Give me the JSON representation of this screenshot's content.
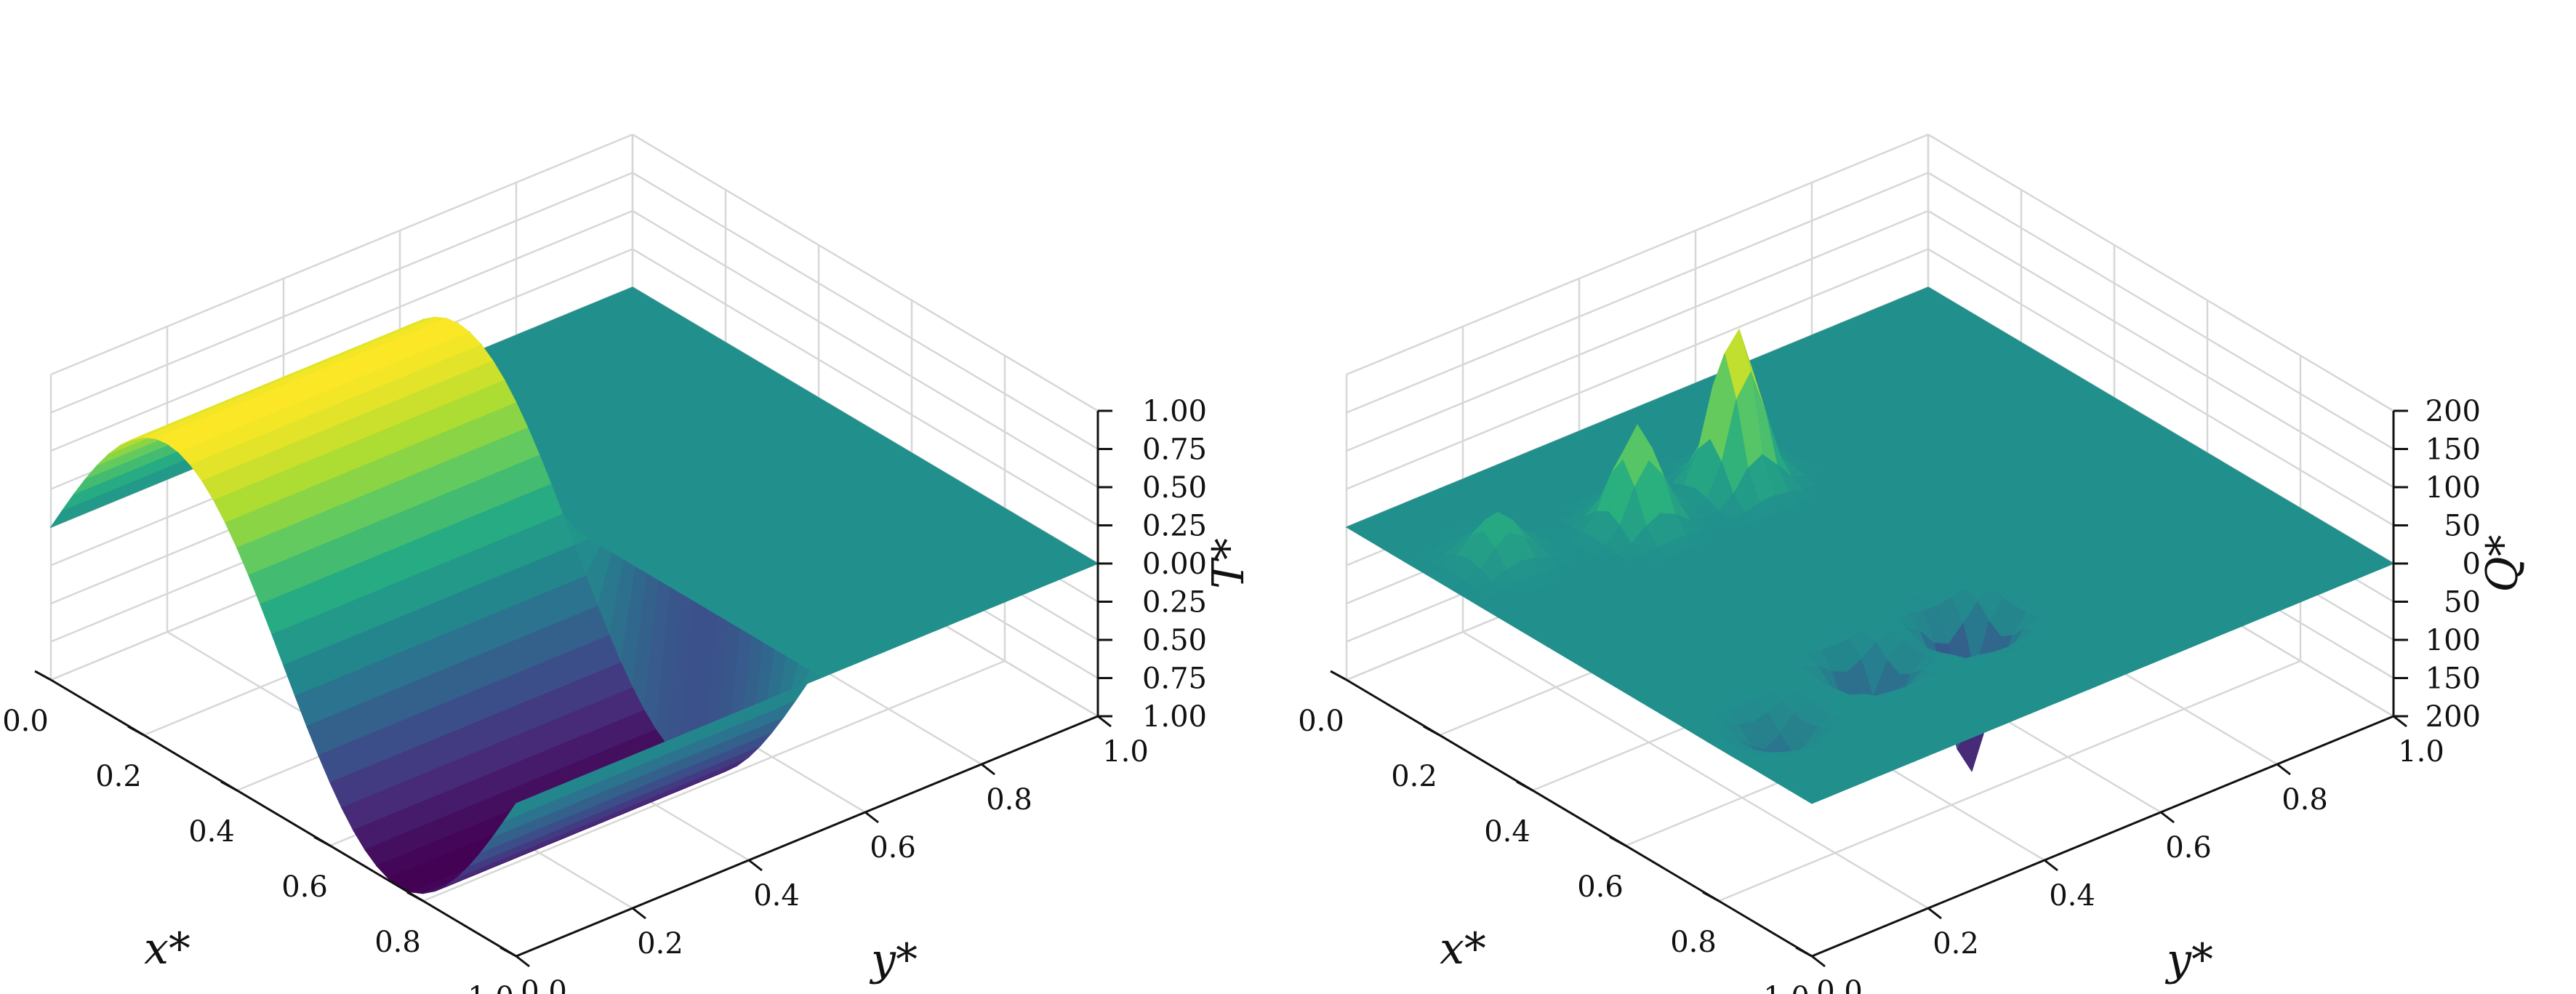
{
  "chart_data": [
    {
      "type": "surface",
      "xlabel": "x*",
      "ylabel": "y*",
      "zlabel": "T*",
      "xlim": [
        0.0,
        1.0
      ],
      "ylim": [
        0.0,
        1.0
      ],
      "zlim": [
        -1.0,
        1.0
      ],
      "x_ticks": [
        "0.0",
        "0.2",
        "0.4",
        "0.6",
        "0.8",
        "1.0"
      ],
      "y_ticks": [
        "0.0",
        "0.2",
        "0.4",
        "0.6",
        "0.8",
        "1.0"
      ],
      "z_ticks": [
        "1.00",
        "0.75",
        "0.50",
        "0.25",
        "0.00",
        "0.25",
        "0.50",
        "0.75",
        "1.00"
      ],
      "z_tick_values": [
        1.0,
        0.75,
        0.5,
        0.25,
        0.0,
        -0.25,
        -0.5,
        -0.75,
        -1.0
      ],
      "colormap": "viridis",
      "grid": true,
      "surface_function": "sin(2*pi*x) for 0 <= y <= 0.5, 0 for y > 0.5",
      "surface_profile": {
        "x": [
          0.0,
          0.125,
          0.25,
          0.375,
          0.5,
          0.625,
          0.75,
          0.875,
          1.0
        ],
        "z_at_y0": [
          0.0,
          0.71,
          1.0,
          0.71,
          0.0,
          -0.71,
          -1.0,
          -0.71,
          0.0
        ],
        "z_for_y_above_half": 0.0
      }
    },
    {
      "type": "surface",
      "xlabel": "x*",
      "ylabel": "y*",
      "zlabel": "Q*",
      "xlim": [
        0.0,
        1.0
      ],
      "ylim": [
        0.0,
        1.0
      ],
      "zlim": [
        -200,
        200
      ],
      "x_ticks": [
        "0.0",
        "0.2",
        "0.4",
        "0.6",
        "0.8",
        "1.0"
      ],
      "y_ticks": [
        "0.0",
        "0.2",
        "0.4",
        "0.6",
        "0.8",
        "1.0"
      ],
      "z_ticks": [
        "200",
        "150",
        "100",
        "50",
        "0",
        "50",
        "100",
        "150",
        "200"
      ],
      "z_tick_values": [
        200,
        150,
        100,
        50,
        0,
        -50,
        -100,
        -150,
        -200
      ],
      "colormap": "viridis",
      "grid": true,
      "peaks": [
        {
          "x": 0.25,
          "y": 0.47,
          "z": 220
        },
        {
          "x": 0.25,
          "y": 0.3,
          "z": 130
        },
        {
          "x": 0.2,
          "y": 0.1,
          "z": 60
        },
        {
          "x": 0.75,
          "y": 0.47,
          "z": -200
        },
        {
          "x": 0.75,
          "y": 0.3,
          "z": -125
        },
        {
          "x": 0.8,
          "y": 0.1,
          "z": -60
        }
      ]
    }
  ]
}
